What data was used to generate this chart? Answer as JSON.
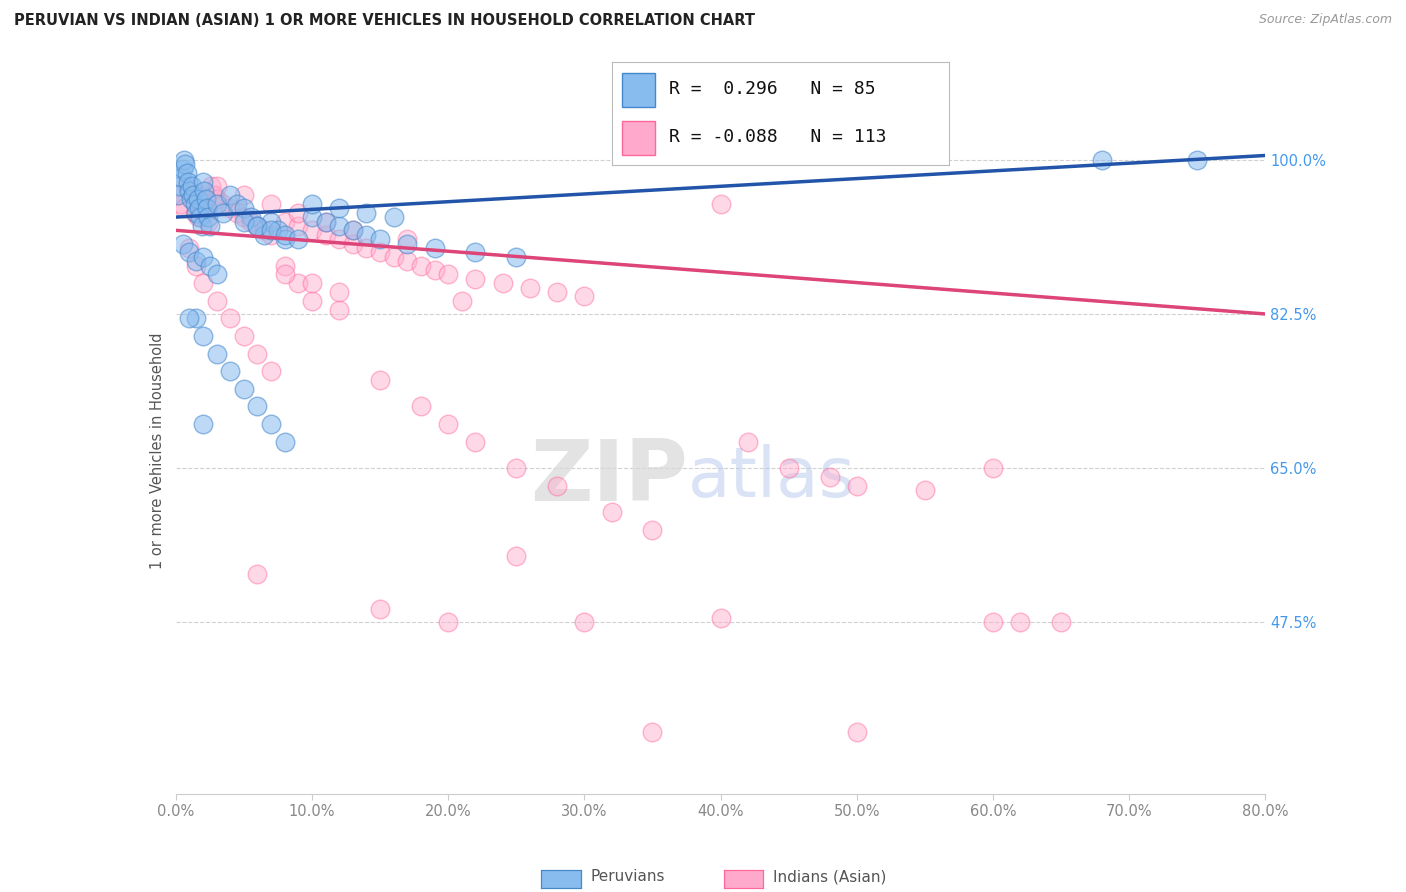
{
  "title": "PERUVIAN VS INDIAN (ASIAN) 1 OR MORE VEHICLES IN HOUSEHOLD CORRELATION CHART",
  "source": "Source: ZipAtlas.com",
  "ylabel": "1 or more Vehicles in Household",
  "xlim": [
    0.0,
    80.0
  ],
  "ylim": [
    28.0,
    106.0
  ],
  "yticks": [
    47.5,
    65.0,
    82.5,
    100.0
  ],
  "xticks": [
    0.0,
    10.0,
    20.0,
    30.0,
    40.0,
    50.0,
    60.0,
    70.0,
    80.0
  ],
  "blue_R": 0.296,
  "blue_N": 85,
  "pink_R": -0.088,
  "pink_N": 113,
  "blue_color": "#88bbee",
  "pink_color": "#ffaacc",
  "blue_edge_color": "#4488cc",
  "pink_edge_color": "#ff6699",
  "blue_line_color": "#2255aa",
  "pink_line_color": "#dd4477",
  "blue_label": "Peruvians",
  "pink_label": "Indians (Asian)",
  "blue_line_x0": 0.0,
  "blue_line_y0": 93.5,
  "blue_line_x1": 80.0,
  "blue_line_y1": 100.5,
  "pink_line_x0": 0.0,
  "pink_line_y0": 92.0,
  "pink_line_x1": 80.0,
  "pink_line_y1": 82.5,
  "title_color": "#222222",
  "source_color": "#999999",
  "ytick_color": "#4499ee",
  "xtick_color": "#888888",
  "grid_color": "#cccccc",
  "axis_label_color": "#555555"
}
